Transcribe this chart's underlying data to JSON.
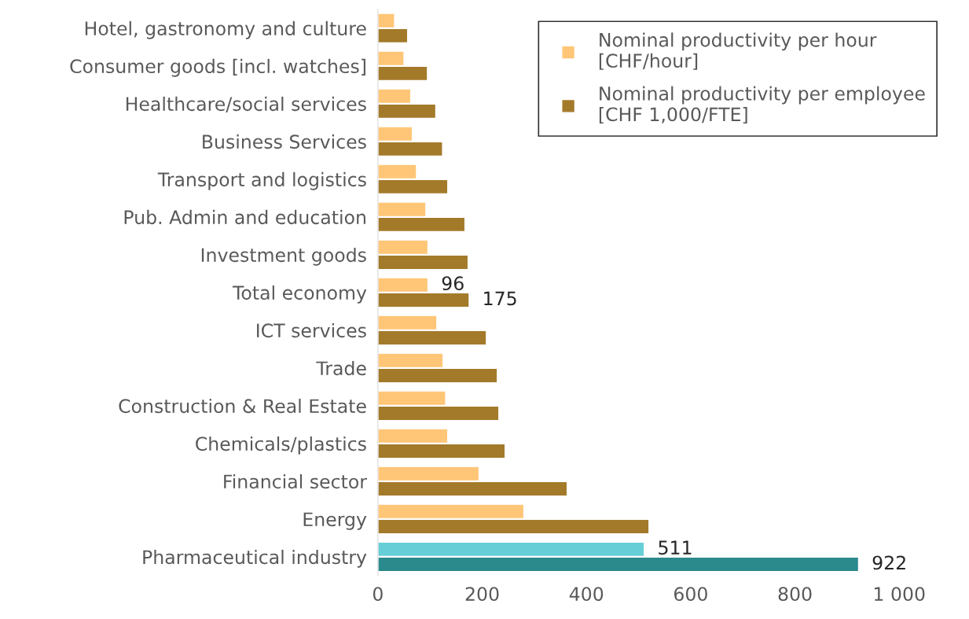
{
  "chart_data": {
    "type": "bar",
    "orientation": "horizontal",
    "categories": [
      "Hotel, gastronomy and culture",
      "Consumer goods [incl. watches]",
      "Healthcare/social services",
      "Business Services",
      "Transport and logistics",
      "Pub. Admin and education",
      "Investment goods",
      "Total economy",
      "ICT services",
      "Trade",
      "Construction & Real Estate",
      "Chemicals/plastics",
      "Financial sector",
      "Energy",
      "Pharmaceutical industry"
    ],
    "series": [
      {
        "name": "Nominal productivity per hour [CHF/hour]",
        "color": "#ffc677",
        "colors": [
          "#ffc677",
          "#ffc677",
          "#ffc677",
          "#ffc677",
          "#ffc677",
          "#ffc677",
          "#ffc677",
          "#ffc677",
          "#ffc677",
          "#ffc677",
          "#ffc677",
          "#ffc677",
          "#ffc677",
          "#ffc677",
          "#66ced6"
        ],
        "values": [
          32,
          50,
          63,
          66,
          74,
          92,
          96,
          96,
          113,
          125,
          130,
          134,
          194,
          280,
          511
        ],
        "value_labels": [
          null,
          null,
          null,
          null,
          null,
          null,
          null,
          "96",
          null,
          null,
          null,
          null,
          null,
          null,
          "511"
        ]
      },
      {
        "name": "Nominal productivity per employee [CHF 1,000/FTE]",
        "color": "#a37a2a",
        "colors": [
          "#a37a2a",
          "#a37a2a",
          "#a37a2a",
          "#a37a2a",
          "#a37a2a",
          "#a37a2a",
          "#a37a2a",
          "#a37a2a",
          "#a37a2a",
          "#a37a2a",
          "#a37a2a",
          "#a37a2a",
          "#a37a2a",
          "#a37a2a",
          "#2a8a8c"
        ],
        "values": [
          57,
          95,
          111,
          124,
          134,
          167,
          173,
          175,
          208,
          229,
          232,
          244,
          363,
          520,
          922
        ],
        "value_labels": [
          null,
          null,
          null,
          null,
          null,
          null,
          null,
          "175",
          null,
          null,
          null,
          null,
          null,
          null,
          "922"
        ]
      }
    ],
    "xlim": [
      0,
      1000
    ],
    "xticks": [
      0,
      200,
      400,
      600,
      800,
      {
        "value": 1000,
        "label": "1 000"
      }
    ],
    "legend": "top right",
    "marker": "square",
    "grid": false
  }
}
